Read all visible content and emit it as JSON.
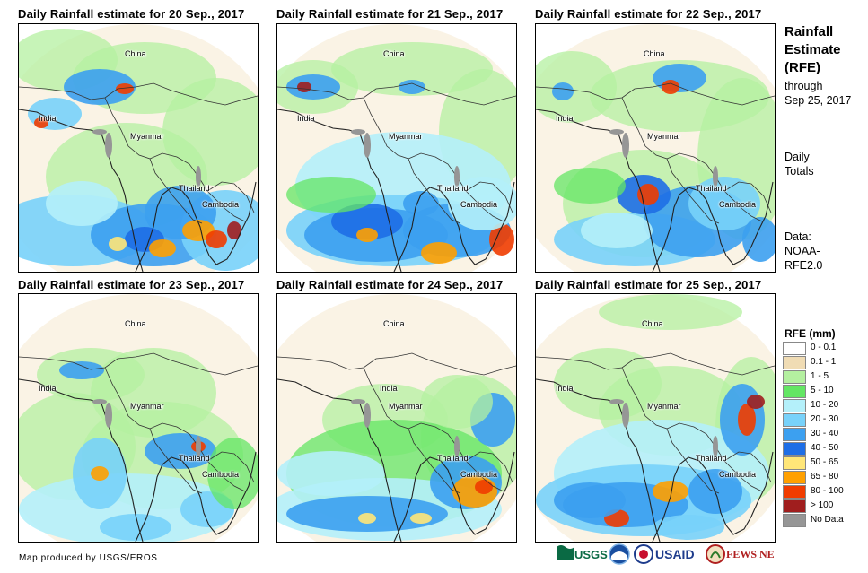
{
  "panels": [
    {
      "title": "Daily Rainfall estimate for 20 Sep., 2017",
      "labels": {
        "china": "China",
        "india": "India",
        "myanmar": "Myanmar",
        "thailand": "Thailand",
        "cambodia": "Cambodia"
      }
    },
    {
      "title": "Daily Rainfall estimate for 21 Sep., 2017",
      "labels": {
        "china": "China",
        "india": "India",
        "myanmar": "Myanmar",
        "thailand": "Thailand",
        "cambodia": "Cambodia"
      }
    },
    {
      "title": "Daily Rainfall estimate for 22 Sep., 2017",
      "labels": {
        "china": "China",
        "india": "India",
        "myanmar": "Myanmar",
        "thailand": "Thailand",
        "cambodia": "Cambodia"
      }
    },
    {
      "title": "Daily Rainfall estimate for 23 Sep., 2017",
      "labels": {
        "china": "China",
        "india": "India",
        "myanmar": "Myanmar",
        "thailand": "Thailand",
        "cambodia": "Cambodia"
      }
    },
    {
      "title": "Daily Rainfall estimate for 24 Sep., 2017",
      "labels": {
        "china": "China",
        "india": "India",
        "myanmar": "Myanmar",
        "thailand": "Thailand",
        "cambodia": "Cambodia"
      }
    },
    {
      "title": "Daily Rainfall estimate for 25 Sep., 2017",
      "labels": {
        "china": "China",
        "india": "India",
        "myanmar": "Myanmar",
        "thailand": "Thailand",
        "cambodia": "Cambodia"
      }
    }
  ],
  "side": {
    "title_line1": "Rainfall",
    "title_line2": "Estimate",
    "title_line3": "(RFE)",
    "through": "through",
    "date": "Sep 25, 2017",
    "daily": "Daily",
    "totals": "Totals",
    "data_label": "Data:",
    "source_line1": "NOAA-",
    "source_line2": "RFE2.0"
  },
  "legend": {
    "title": "RFE (mm)",
    "items": [
      {
        "label": "0 - 0.1",
        "color": "#ffffff"
      },
      {
        "label": "0.1 - 1",
        "color": "#f0dcb4"
      },
      {
        "label": "1 - 5",
        "color": "#b4f0a0"
      },
      {
        "label": "5 - 10",
        "color": "#64e664"
      },
      {
        "label": "10 - 20",
        "color": "#b4f0fa"
      },
      {
        "label": "20 - 30",
        "color": "#78d2fa"
      },
      {
        "label": "30 - 40",
        "color": "#3ca0f0"
      },
      {
        "label": "40 - 50",
        "color": "#1e6ee6"
      },
      {
        "label": "50 - 65",
        "color": "#ffe678"
      },
      {
        "label": "65 - 80",
        "color": "#ffa000"
      },
      {
        "label": "80 - 100",
        "color": "#f03c00"
      },
      {
        "label": "> 100",
        "color": "#a01e1e"
      },
      {
        "label": "No Data",
        "color": "#969696"
      }
    ]
  },
  "credit": "Map produced by USGS/EROS",
  "logos": {
    "usgs": "USGS",
    "usaid": "USAID",
    "fewsnet": "FEWS NET"
  }
}
